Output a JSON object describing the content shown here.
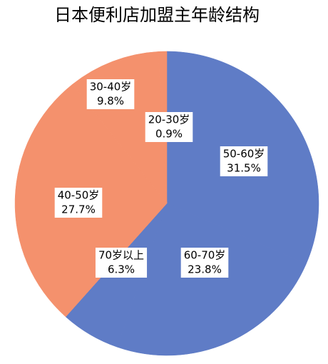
{
  "chart_data": {
    "type": "pie",
    "title": "日本便利店加盟主年龄结构",
    "categories": [
      "50-60岁",
      "60-70岁",
      "70岁以上",
      "40-50岁",
      "30-40岁",
      "20-30岁"
    ],
    "values": [
      31.5,
      23.8,
      6.3,
      27.7,
      9.8,
      0.9
    ],
    "value_labels": [
      "31.5%",
      "23.8%",
      "6.3%",
      "27.7%",
      "9.8%",
      "0.9%"
    ],
    "colors": [
      "#5f7cc6",
      "#5f7cc6",
      "#5f7cc6",
      "#f4916d",
      "#f4916d",
      "#f4916d"
    ]
  }
}
